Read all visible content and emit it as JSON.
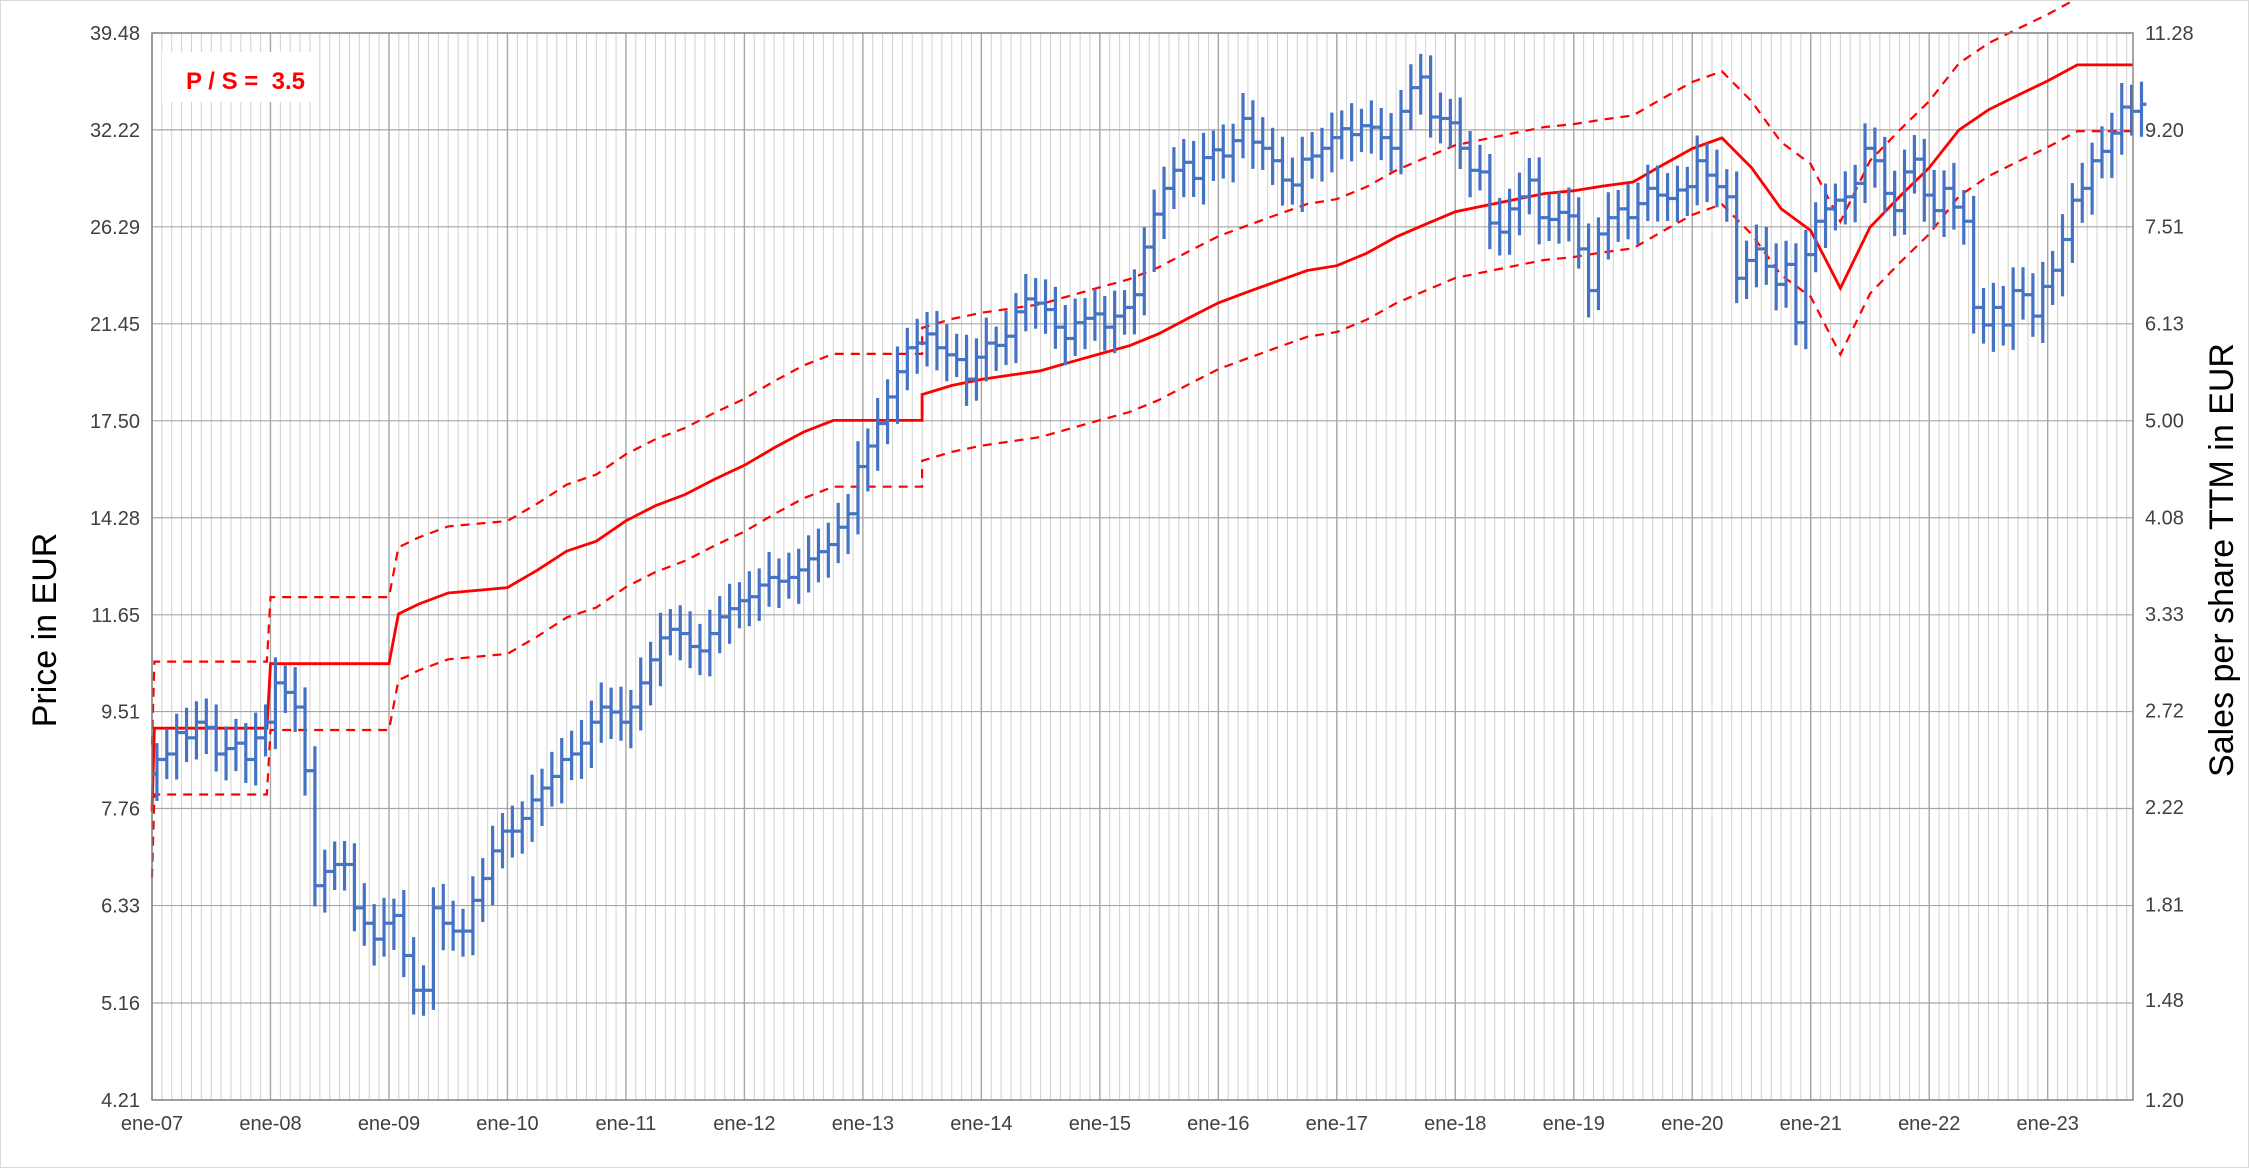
{
  "chart_data": {
    "type": "line",
    "title": "",
    "annotation": "P / S =  3.5",
    "ylabel_left": "Price in EUR",
    "ylabel_right": "Sales per share TTM in EUR",
    "y_scale": "log",
    "ylim_left": [
      4.21,
      39.48
    ],
    "ylim_right": [
      1.2,
      11.28
    ],
    "yticks_left": [
      "39.48",
      "32.22",
      "26.29",
      "21.45",
      "17.50",
      "14.28",
      "11.65",
      "9.51",
      "7.76",
      "6.33",
      "5.16",
      "4.21"
    ],
    "yticks_right": [
      "11.28",
      "9.20",
      "7.51",
      "6.13",
      "5.00",
      "4.08",
      "3.33",
      "2.72",
      "2.22",
      "1.81",
      "1.48",
      "1.20"
    ],
    "x_range": [
      2007.0,
      2023.72
    ],
    "xtick_labels": [
      "ene-07",
      "ene-08",
      "ene-09",
      "ene-10",
      "ene-11",
      "ene-12",
      "ene-13",
      "ene-14",
      "ene-15",
      "ene-16",
      "ene-17",
      "ene-18",
      "ene-19",
      "ene-20",
      "ene-21",
      "ene-22",
      "ene-23"
    ],
    "grid": true,
    "colors": {
      "price": "#4472c4",
      "fair_value": "#ff0000",
      "bands": "#ff0000",
      "grid": "#bfbfbf"
    },
    "series": [
      {
        "kind": "ohlc_monthly",
        "start": 2007.0,
        "close": [
          8.6,
          8.7,
          9.1,
          9.0,
          9.3,
          9.2,
          8.7,
          8.8,
          8.9,
          8.6,
          9.0,
          9.3,
          10.1,
          9.9,
          9.6,
          8.4,
          6.6,
          6.8,
          6.9,
          6.9,
          6.3,
          6.1,
          5.9,
          6.1,
          6.2,
          5.7,
          5.3,
          5.3,
          6.3,
          6.1,
          6.0,
          6.0,
          6.4,
          6.7,
          7.1,
          7.4,
          7.4,
          7.6,
          7.9,
          8.1,
          8.3,
          8.6,
          8.7,
          8.9,
          9.3,
          9.6,
          9.5,
          9.3,
          9.6,
          10.1,
          10.6,
          11.1,
          11.3,
          11.2,
          10.9,
          10.8,
          11.2,
          11.6,
          11.8,
          12.0,
          12.1,
          12.4,
          12.6,
          12.5,
          12.6,
          12.8,
          13.1,
          13.3,
          13.5,
          14.0,
          14.4,
          15.9,
          16.6,
          17.4,
          18.4,
          19.4,
          20.4,
          20.6,
          21.0,
          20.4,
          20.1,
          19.9,
          19.1,
          20.0,
          20.6,
          20.5,
          20.9,
          22.0,
          22.6,
          22.4,
          22.1,
          21.3,
          20.8,
          21.5,
          21.7,
          21.9,
          21.3,
          21.8,
          22.2,
          22.8,
          25.2,
          27.0,
          28.5,
          29.6,
          30.1,
          29.1,
          30.4,
          30.9,
          30.5,
          31.5,
          33.0,
          31.4,
          31.0,
          30.2,
          29.0,
          28.7,
          30.3,
          30.5,
          31.0,
          31.7,
          32.3,
          31.9,
          32.5,
          32.4,
          31.7,
          31.0,
          33.5,
          35.2,
          36.0,
          33.1,
          33.0,
          32.7,
          31.0,
          29.6,
          29.5,
          26.5,
          26.0,
          27.3,
          28.0,
          29.0,
          26.8,
          26.7,
          27.1,
          26.9,
          25.1,
          23.0,
          25.9,
          26.8,
          27.3,
          26.8,
          27.6,
          28.5,
          28.1,
          27.9,
          28.4,
          28.6,
          30.2,
          29.3,
          28.6,
          28.0,
          23.6,
          24.5,
          25.1,
          24.2,
          23.3,
          24.3,
          21.5,
          24.8,
          26.6,
          27.3,
          27.8,
          28.0,
          28.8,
          31.0,
          30.2,
          28.2,
          27.2,
          29.5,
          30.3,
          28.1,
          27.2,
          28.5,
          27.4,
          26.6,
          22.2,
          21.4,
          22.2,
          21.4,
          23.0,
          22.8,
          21.8,
          23.2,
          24.0,
          25.6,
          27.8,
          28.5,
          30.2,
          30.8,
          32.0,
          33.8,
          33.5,
          34.0
        ]
      },
      {
        "name": "Sales per share TTM",
        "axis": "right",
        "points": [
          [
            2007.0,
            2.2
          ],
          [
            2007.02,
            2.62
          ],
          [
            2007.97,
            2.62
          ],
          [
            2008.0,
            3.0
          ],
          [
            2009.0,
            3.0
          ],
          [
            2009.08,
            3.33
          ],
          [
            2009.25,
            3.4
          ],
          [
            2009.5,
            3.48
          ],
          [
            2010.0,
            3.52
          ],
          [
            2010.25,
            3.65
          ],
          [
            2010.5,
            3.8
          ],
          [
            2010.75,
            3.88
          ],
          [
            2011.0,
            4.05
          ],
          [
            2011.25,
            4.18
          ],
          [
            2011.5,
            4.28
          ],
          [
            2011.75,
            4.42
          ],
          [
            2012.0,
            4.55
          ],
          [
            2012.25,
            4.72
          ],
          [
            2012.5,
            4.88
          ],
          [
            2012.75,
            5.0
          ],
          [
            2013.0,
            5.0
          ],
          [
            2013.5,
            5.0
          ],
          [
            2013.5,
            5.28
          ],
          [
            2013.75,
            5.38
          ],
          [
            2014.0,
            5.45
          ],
          [
            2014.25,
            5.5
          ],
          [
            2014.5,
            5.55
          ],
          [
            2014.75,
            5.65
          ],
          [
            2015.0,
            5.75
          ],
          [
            2015.25,
            5.85
          ],
          [
            2015.5,
            6.0
          ],
          [
            2015.75,
            6.2
          ],
          [
            2016.0,
            6.4
          ],
          [
            2016.25,
            6.55
          ],
          [
            2016.5,
            6.7
          ],
          [
            2016.75,
            6.85
          ],
          [
            2017.0,
            6.92
          ],
          [
            2017.25,
            7.1
          ],
          [
            2017.5,
            7.35
          ],
          [
            2017.75,
            7.55
          ],
          [
            2018.0,
            7.75
          ],
          [
            2018.25,
            7.85
          ],
          [
            2018.5,
            7.95
          ],
          [
            2018.75,
            8.05
          ],
          [
            2019.0,
            8.1
          ],
          [
            2019.25,
            8.18
          ],
          [
            2019.5,
            8.25
          ],
          [
            2019.75,
            8.55
          ],
          [
            2020.0,
            8.85
          ],
          [
            2020.25,
            9.05
          ],
          [
            2020.5,
            8.5
          ],
          [
            2020.75,
            7.8
          ],
          [
            2021.0,
            7.45
          ],
          [
            2021.25,
            6.6
          ],
          [
            2021.5,
            7.5
          ],
          [
            2021.75,
            8.0
          ],
          [
            2022.0,
            8.5
          ],
          [
            2022.25,
            9.2
          ],
          [
            2022.5,
            9.6
          ],
          [
            2022.75,
            9.9
          ],
          [
            2023.0,
            10.2
          ],
          [
            2023.25,
            10.55
          ],
          [
            2023.72,
            10.55
          ]
        ]
      },
      {
        "name": "upper band",
        "axis": "right",
        "factor": 1.15
      },
      {
        "name": "lower band",
        "axis": "right",
        "factor": 0.87
      }
    ]
  }
}
